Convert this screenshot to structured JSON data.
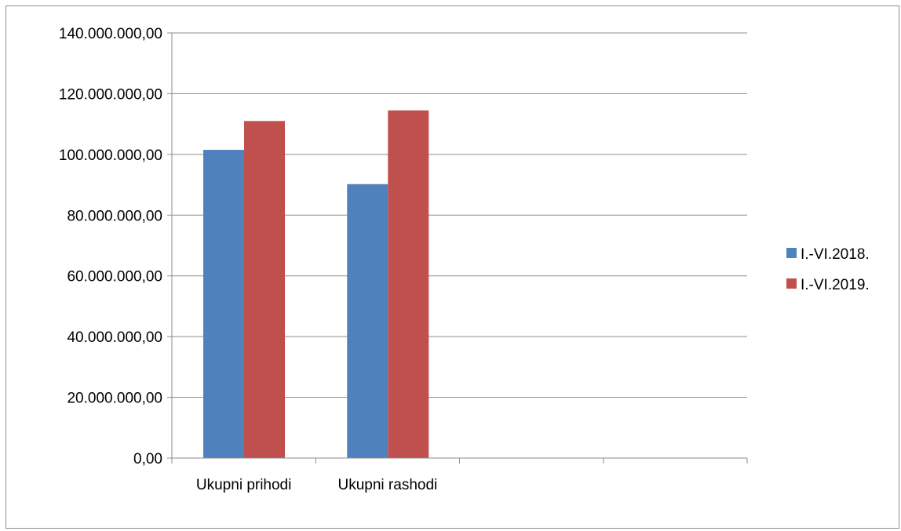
{
  "chart_data": {
    "type": "bar",
    "title": "",
    "xlabel": "",
    "ylabel": "",
    "categories": [
      "Ukupni prihodi",
      "Ukupni rashodi",
      "",
      ""
    ],
    "series": [
      {
        "name": "I.-VI.2018.",
        "color": "#4F81BD",
        "values": [
          101500000,
          90200000,
          null,
          null
        ]
      },
      {
        "name": "I.-VI.2019.",
        "color": "#C0504D",
        "values": [
          111000000,
          114500000,
          null,
          null
        ]
      }
    ],
    "ylim": [
      0,
      140000000
    ],
    "yticks": [
      0,
      20000000,
      40000000,
      60000000,
      80000000,
      100000000,
      120000000,
      140000000
    ],
    "ytick_labels": [
      "0,00",
      "20.000.000,00",
      "40.000.000,00",
      "60.000.000,00",
      "80.000.000,00",
      "100.000.000,00",
      "120.000.000,00",
      "140.000.000,00"
    ],
    "grid": true,
    "legend_position": "right"
  }
}
